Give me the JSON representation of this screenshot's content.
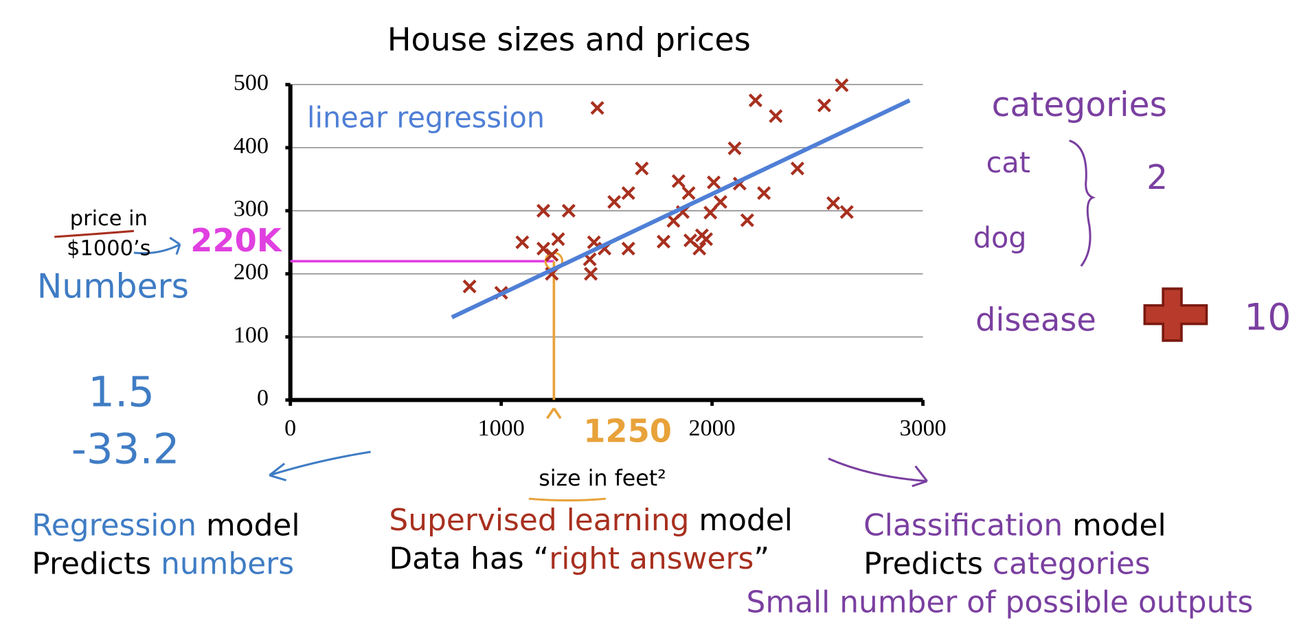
{
  "chart_data": {
    "type": "scatter",
    "title": "House sizes and prices",
    "xlabel": "size in feet²",
    "ylabel": [
      "price in",
      "$1000’s"
    ],
    "xlim": [
      0,
      3000
    ],
    "ylim": [
      0,
      500
    ],
    "xticks": [
      0,
      1000,
      2000,
      3000
    ],
    "yticks": [
      0,
      100,
      200,
      300,
      400,
      500
    ],
    "grid": true,
    "points": {
      "color": "#a8301f",
      "x": [
        850,
        1000,
        1100,
        1200,
        1320,
        1200,
        1270,
        1240,
        1240,
        1425,
        1440,
        1490,
        1456,
        1420,
        1536,
        1603,
        1603,
        1667,
        1770,
        1841,
        1817,
        1861,
        1889,
        1897,
        1940,
        1952,
        1972,
        1992,
        2008,
        2040,
        2107,
        2131,
        2167,
        2206,
        2302,
        2246,
        2405,
        2532,
        2615,
        2575,
        2639
      ],
      "y": [
        180,
        170,
        250,
        300,
        300,
        240,
        255,
        230,
        200,
        200,
        250,
        240,
        463,
        223,
        314,
        328,
        240,
        367,
        251,
        347,
        284,
        298,
        328,
        253,
        240,
        261,
        255,
        297,
        345,
        314,
        399,
        343,
        285,
        475,
        450,
        328,
        367,
        467,
        499,
        312,
        298
      ]
    },
    "fit": {
      "name": "linear regression",
      "color": "#4f7fd6",
      "x": [
        766,
        2937
      ],
      "y": [
        131,
        475
      ]
    },
    "highlight": {
      "x": 1250,
      "y": 220,
      "x_label": "1250",
      "y_label": "220K"
    }
  },
  "annotations": {
    "left": [
      "Numbers",
      "1.5",
      "-33.2"
    ],
    "right": [
      "categories",
      "cat",
      "dog",
      "2",
      "disease",
      "10"
    ]
  },
  "captions": {
    "regression": [
      [
        {
          "text": "Regression",
          "color": "#3f7cc4"
        },
        {
          "text": " model",
          "color": "#000000"
        }
      ],
      [
        {
          "text": "Predicts ",
          "color": "#000000"
        },
        {
          "text": "numbers",
          "color": "#3f7cc4"
        }
      ]
    ],
    "supervised": [
      [
        {
          "text": "Supervised learning",
          "color": "#a8301f"
        },
        {
          "text": " model",
          "color": "#000000"
        }
      ],
      [
        {
          "text": "Data has “",
          "color": "#000000"
        },
        {
          "text": "right answers",
          "color": "#a8301f"
        },
        {
          "text": "”",
          "color": "#000000"
        }
      ]
    ],
    "classification": [
      [
        {
          "text": "Classification",
          "color": "#7a3fa0"
        },
        {
          "text": " model",
          "color": "#000000"
        }
      ],
      [
        {
          "text": "Predicts ",
          "color": "#000000"
        },
        {
          "text": "categories",
          "color": "#7a3fa0"
        }
      ],
      [
        {
          "text": "Small number of possible outputs",
          "color": "#7a3fa0"
        }
      ]
    ]
  }
}
